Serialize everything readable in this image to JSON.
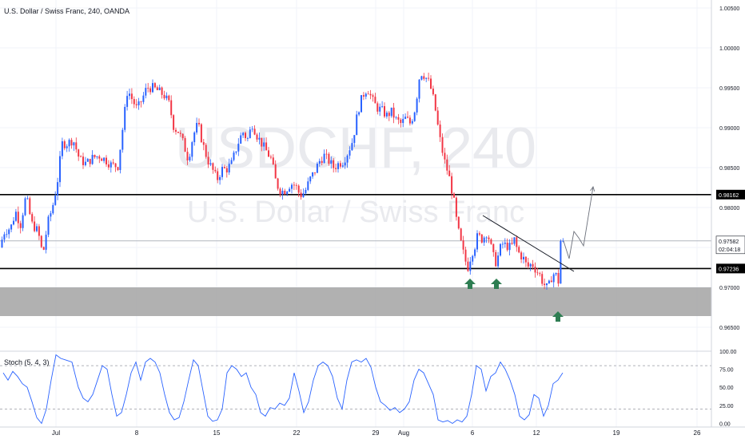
{
  "header": {
    "title": "U.S. Dollar / Swiss Franc, 240, OANDA"
  },
  "watermark": {
    "symbol": "USDCHF, 240",
    "description": "U.S. Dollar / Swiss Franc"
  },
  "colors": {
    "up": "#2962ff",
    "down": "#f23645",
    "level_line": "#000000",
    "last_price_line": "#b2b5be",
    "zone": "#a8a8a8",
    "arrow": "#2e7d52",
    "stoch": "#2962ff",
    "grid": "#f0f3fa"
  },
  "chart_data": [
    {
      "type": "candlestick",
      "title": "U.S. Dollar / Swiss Franc, 240, OANDA",
      "ylim": [
        0.962,
        1.006
      ],
      "y_ticks": [
        "1.00500",
        "1.00000",
        "0.99500",
        "0.99000",
        "0.98500",
        "0.98000",
        "0.97500",
        "0.97000",
        "0.96500"
      ],
      "x_ticks": [
        "Jul",
        "8",
        "15",
        "22",
        "29",
        "Aug",
        "6",
        "12",
        "19",
        "26"
      ],
      "grid": true,
      "path_points": [
        [
          0,
          0.975
        ],
        [
          6,
          0.977
        ],
        [
          14,
          0.9775
        ],
        [
          20,
          0.9795
        ],
        [
          26,
          0.9778
        ],
        [
          33,
          0.9815
        ],
        [
          40,
          0.978
        ],
        [
          48,
          0.977
        ],
        [
          54,
          0.974
        ],
        [
          60,
          0.978
        ],
        [
          66,
          0.98
        ],
        [
          72,
          0.983
        ],
        [
          78,
          0.988
        ],
        [
          84,
          0.988
        ],
        [
          92,
          0.9885
        ],
        [
          100,
          0.986
        ],
        [
          108,
          0.9855
        ],
        [
          116,
          0.9862
        ],
        [
          124,
          0.9865
        ],
        [
          132,
          0.986
        ],
        [
          140,
          0.9853
        ],
        [
          148,
          0.9852
        ],
        [
          154,
          0.99
        ],
        [
          160,
          0.9948
        ],
        [
          166,
          0.9935
        ],
        [
          172,
          0.9923
        ],
        [
          178,
          0.9935
        ],
        [
          184,
          0.995
        ],
        [
          192,
          0.995
        ],
        [
          200,
          0.9945
        ],
        [
          206,
          0.994
        ],
        [
          212,
          0.993
        ],
        [
          218,
          0.99
        ],
        [
          224,
          0.9895
        ],
        [
          230,
          0.988
        ],
        [
          236,
          0.986
        ],
        [
          242,
          0.989
        ],
        [
          248,
          0.9905
        ],
        [
          254,
          0.988
        ],
        [
          260,
          0.986
        ],
        [
          266,
          0.9848
        ],
        [
          272,
          0.9835
        ],
        [
          278,
          0.9848
        ],
        [
          284,
          0.9848
        ],
        [
          290,
          0.9855
        ],
        [
          298,
          0.988
        ],
        [
          304,
          0.9895
        ],
        [
          310,
          0.9885
        ],
        [
          316,
          0.9905
        ],
        [
          322,
          0.989
        ],
        [
          328,
          0.988
        ],
        [
          334,
          0.987
        ],
        [
          340,
          0.986
        ],
        [
          346,
          0.983
        ],
        [
          352,
          0.982
        ],
        [
          358,
          0.9822
        ],
        [
          364,
          0.983
        ],
        [
          370,
          0.9828
        ],
        [
          376,
          0.9815
        ],
        [
          382,
          0.982
        ],
        [
          388,
          0.9835
        ],
        [
          394,
          0.9845
        ],
        [
          400,
          0.9858
        ],
        [
          406,
          0.9865
        ],
        [
          412,
          0.9858
        ],
        [
          418,
          0.985
        ],
        [
          424,
          0.9855
        ],
        [
          430,
          0.9858
        ],
        [
          436,
          0.987
        ],
        [
          442,
          0.9885
        ],
        [
          448,
          0.992
        ],
        [
          454,
          0.994
        ],
        [
          460,
          0.995
        ],
        [
          466,
          0.9935
        ],
        [
          472,
          0.9925
        ],
        [
          478,
          0.9922
        ],
        [
          484,
          0.9915
        ],
        [
          490,
          0.992
        ],
        [
          496,
          0.991
        ],
        [
          502,
          0.9905
        ],
        [
          508,
          0.9912
        ],
        [
          514,
          0.9905
        ],
        [
          520,
          0.9925
        ],
        [
          526,
          0.997
        ],
        [
          532,
          0.9965
        ],
        [
          538,
          0.9955
        ],
        [
          544,
          0.993
        ],
        [
          550,
          0.989
        ],
        [
          556,
          0.986
        ],
        [
          562,
          0.984
        ],
        [
          568,
          0.981
        ],
        [
          572,
          0.978
        ],
        [
          576,
          0.976
        ],
        [
          582,
          0.9735
        ],
        [
          586,
          0.9725
        ],
        [
          590,
          0.9742
        ],
        [
          594,
          0.975
        ],
        [
          598,
          0.9765
        ],
        [
          604,
          0.976
        ],
        [
          610,
          0.977
        ],
        [
          616,
          0.9745
        ],
        [
          620,
          0.973
        ],
        [
          624,
          0.974
        ],
        [
          628,
          0.9755
        ],
        [
          634,
          0.9752
        ],
        [
          640,
          0.975
        ],
        [
          644,
          0.976
        ],
        [
          648,
          0.9745
        ],
        [
          652,
          0.974
        ],
        [
          656,
          0.9735
        ],
        [
          660,
          0.9725
        ],
        [
          666,
          0.973
        ],
        [
          672,
          0.972
        ],
        [
          676,
          0.9715
        ],
        [
          680,
          0.9705
        ],
        [
          686,
          0.9698
        ],
        [
          690,
          0.9712
        ],
        [
          694,
          0.9718
        ],
        [
          698,
          0.9712
        ],
        [
          702,
          0.9692
        ],
        [
          705,
          0.9758
        ]
      ],
      "levels": [
        {
          "label": "0.98162",
          "value": 0.98162
        },
        {
          "label": "0.97236",
          "value": 0.97236
        }
      ],
      "last_price": {
        "label": "0.97582",
        "value": 0.97582,
        "countdown": "02:04:18"
      },
      "support_zone": [
        0.9664,
        0.97
      ],
      "trendline": [
        [
          604,
          0.979
        ],
        [
          718,
          0.972
        ]
      ],
      "projection": [
        [
          705,
          0.9758
        ],
        [
          712,
          0.9736
        ],
        [
          718,
          0.977
        ],
        [
          724,
          0.9762
        ],
        [
          730,
          0.9752
        ],
        [
          742,
          0.9826
        ]
      ],
      "arrows_x": [
        588,
        621,
        698
      ]
    },
    {
      "type": "line",
      "title": "Stoch (5, 4, 3)",
      "ylim": [
        -5,
        100
      ],
      "y_ticks": [
        "100.00",
        "75.00",
        "50.00",
        "25.00",
        "0.00"
      ],
      "reference_lines": [
        80,
        20
      ],
      "series": [
        {
          "name": "Stoch (5, 4, 3)",
          "values": [
            [
              4,
              70
            ],
            [
              10,
              60
            ],
            [
              16,
              72
            ],
            [
              22,
              65
            ],
            [
              28,
              55
            ],
            [
              34,
              50
            ],
            [
              40,
              30
            ],
            [
              46,
              8
            ],
            [
              52,
              0
            ],
            [
              58,
              20
            ],
            [
              64,
              60
            ],
            [
              70,
              95
            ],
            [
              76,
              90
            ],
            [
              82,
              88
            ],
            [
              90,
              85
            ],
            [
              98,
              50
            ],
            [
              104,
              35
            ],
            [
              110,
              30
            ],
            [
              116,
              40
            ],
            [
              122,
              60
            ],
            [
              128,
              80
            ],
            [
              134,
              75
            ],
            [
              140,
              40
            ],
            [
              146,
              10
            ],
            [
              152,
              15
            ],
            [
              158,
              40
            ],
            [
              164,
              70
            ],
            [
              170,
              85
            ],
            [
              176,
              60
            ],
            [
              182,
              85
            ],
            [
              188,
              90
            ],
            [
              194,
              85
            ],
            [
              200,
              70
            ],
            [
              206,
              40
            ],
            [
              212,
              15
            ],
            [
              218,
              5
            ],
            [
              224,
              8
            ],
            [
              230,
              30
            ],
            [
              236,
              60
            ],
            [
              242,
              88
            ],
            [
              248,
              80
            ],
            [
              254,
              45
            ],
            [
              260,
              10
            ],
            [
              266,
              3
            ],
            [
              272,
              5
            ],
            [
              278,
              20
            ],
            [
              284,
              70
            ],
            [
              290,
              80
            ],
            [
              296,
              75
            ],
            [
              302,
              65
            ],
            [
              308,
              70
            ],
            [
              314,
              50
            ],
            [
              320,
              40
            ],
            [
              326,
              15
            ],
            [
              332,
              10
            ],
            [
              338,
              22
            ],
            [
              344,
              20
            ],
            [
              350,
              28
            ],
            [
              356,
              25
            ],
            [
              362,
              35
            ],
            [
              368,
              70
            ],
            [
              374,
              45
            ],
            [
              380,
              15
            ],
            [
              386,
              30
            ],
            [
              392,
              60
            ],
            [
              398,
              80
            ],
            [
              404,
              85
            ],
            [
              410,
              80
            ],
            [
              416,
              65
            ],
            [
              422,
              35
            ],
            [
              428,
              20
            ],
            [
              434,
              60
            ],
            [
              440,
              85
            ],
            [
              446,
              88
            ],
            [
              452,
              85
            ],
            [
              458,
              90
            ],
            [
              464,
              78
            ],
            [
              470,
              50
            ],
            [
              476,
              30
            ],
            [
              482,
              25
            ],
            [
              488,
              18
            ],
            [
              494,
              22
            ],
            [
              500,
              15
            ],
            [
              506,
              20
            ],
            [
              512,
              30
            ],
            [
              518,
              60
            ],
            [
              524,
              75
            ],
            [
              530,
              70
            ],
            [
              536,
              55
            ],
            [
              542,
              40
            ],
            [
              548,
              5
            ],
            [
              554,
              2
            ],
            [
              560,
              4
            ],
            [
              566,
              0
            ],
            [
              572,
              5
            ],
            [
              578,
              2
            ],
            [
              584,
              10
            ],
            [
              590,
              40
            ],
            [
              596,
              80
            ],
            [
              602,
              75
            ],
            [
              608,
              45
            ],
            [
              614,
              65
            ],
            [
              620,
              70
            ],
            [
              626,
              85
            ],
            [
              632,
              75
            ],
            [
              638,
              60
            ],
            [
              644,
              40
            ],
            [
              650,
              10
            ],
            [
              656,
              5
            ],
            [
              662,
              12
            ],
            [
              668,
              40
            ],
            [
              674,
              35
            ],
            [
              680,
              10
            ],
            [
              686,
              25
            ],
            [
              692,
              55
            ],
            [
              698,
              60
            ],
            [
              704,
              70
            ]
          ]
        }
      ]
    }
  ]
}
